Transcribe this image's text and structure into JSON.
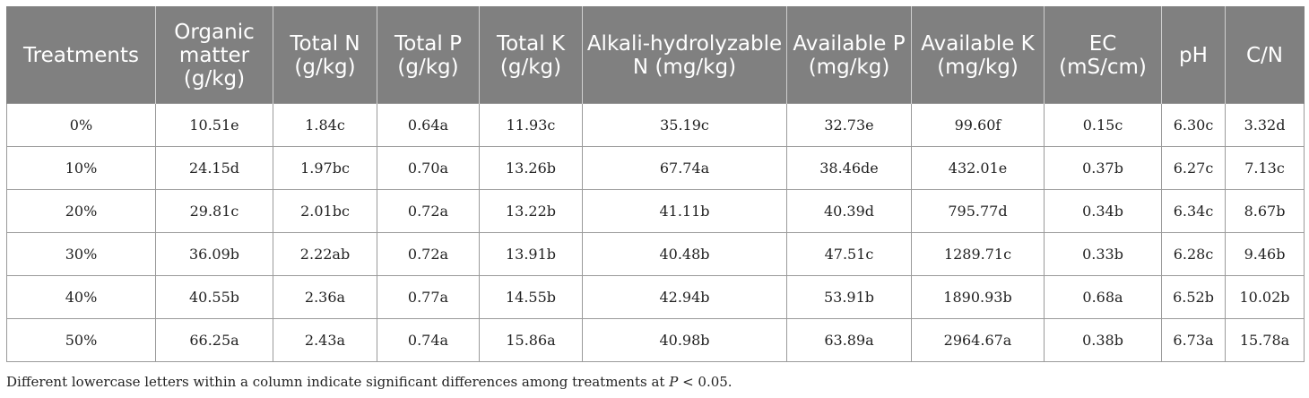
{
  "table": {
    "headers": [
      "Treatments",
      "Organic matter (g/kg)",
      "Total N (g/kg)",
      "Total P (g/kg)",
      "Total K (g/kg)",
      "Alkali-hydrolyzable N (mg/kg)",
      "Available P (mg/kg)",
      "Available K (mg/kg)",
      "EC (mS/cm)",
      "pH",
      "C/N"
    ],
    "rows": [
      [
        "0%",
        "10.51e",
        "1.84c",
        "0.64a",
        "11.93c",
        "35.19c",
        "32.73e",
        "99.60f",
        "0.15c",
        "6.30c",
        "3.32d"
      ],
      [
        "10%",
        "24.15d",
        "1.97bc",
        "0.70a",
        "13.26b",
        "67.74a",
        "38.46de",
        "432.01e",
        "0.37b",
        "6.27c",
        "7.13c"
      ],
      [
        "20%",
        "29.81c",
        "2.01bc",
        "0.72a",
        "13.22b",
        "41.11b",
        "40.39d",
        "795.77d",
        "0.34b",
        "6.34c",
        "8.67b"
      ],
      [
        "30%",
        "36.09b",
        "2.22ab",
        "0.72a",
        "13.91b",
        "40.48b",
        "47.51c",
        "1289.71c",
        "0.33b",
        "6.28c",
        "9.46b"
      ],
      [
        "40%",
        "40.55b",
        "2.36a",
        "0.77a",
        "14.55b",
        "42.94b",
        "53.91b",
        "1890.93b",
        "0.68a",
        "6.52b",
        "10.02b"
      ],
      [
        "50%",
        "66.25a",
        "2.43a",
        "0.74a",
        "15.86a",
        "40.98b",
        "63.89a",
        "2964.67a",
        "0.38b",
        "6.73a",
        "15.78a"
      ]
    ]
  },
  "footnote": {
    "before": "Different lowercase letters within a column indicate significant differences among treatments at ",
    "italic": "P",
    "after": " < 0.05."
  },
  "colors": {
    "header_bg": "#808080",
    "header_text": "#ffffff",
    "border": "#9a9a9a"
  }
}
